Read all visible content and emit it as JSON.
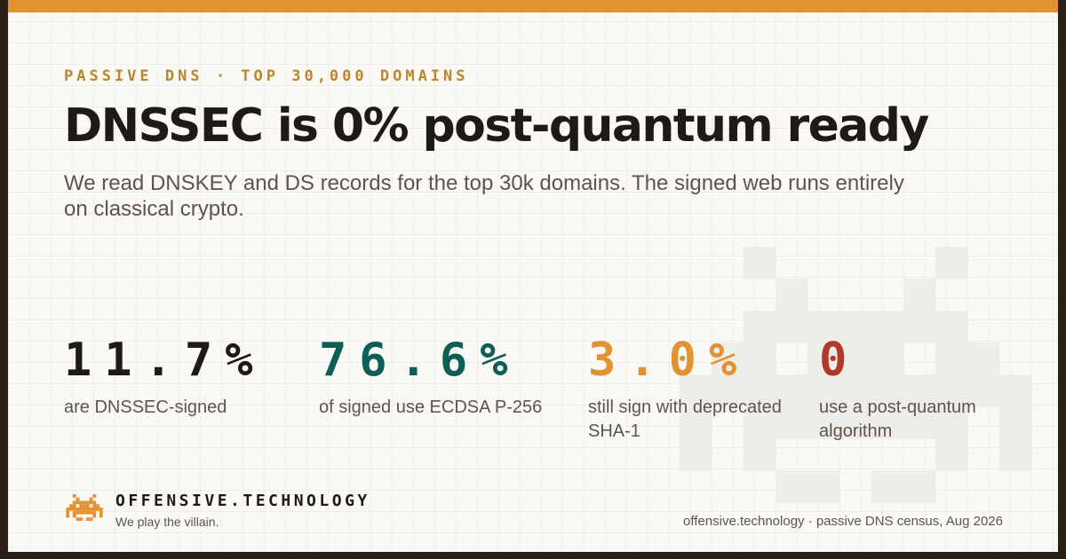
{
  "colors": {
    "accent": "#e39232",
    "ink": "#1f1a14",
    "muted": "#5b554d",
    "teal": "#0e5e58",
    "orange": "#e39232",
    "red": "#b2392a",
    "invader_bg": "#efede7",
    "eyebrow": "#b8862f"
  },
  "eyebrow": "PASSIVE DNS · TOP 30,000 DOMAINS",
  "headline": "DNSSEC is 0% post-quantum ready",
  "subhead": "We read DNSKEY and DS records for the top 30k domains. The signed web runs entirely on classical crypto.",
  "stats": [
    {
      "value": "11.7%",
      "label": "are DNSSEC-signed",
      "color": "#1f1a14"
    },
    {
      "value": "76.6%",
      "label": "of signed use ECDSA P-256",
      "color": "#0e5e58"
    },
    {
      "value": "3.0%",
      "label": "still sign with deprecated SHA-1",
      "color": "#e39232"
    },
    {
      "value": "0",
      "label": "use a post-quantum algorithm",
      "color": "#b2392a"
    }
  ],
  "brand": {
    "name": "OFFENSIVE.TECHNOLOGY",
    "tagline": "We play the villain.",
    "logo_icon": "space-invader-icon"
  },
  "footnote": "offensive.technology · passive DNS census, Aug 2026"
}
